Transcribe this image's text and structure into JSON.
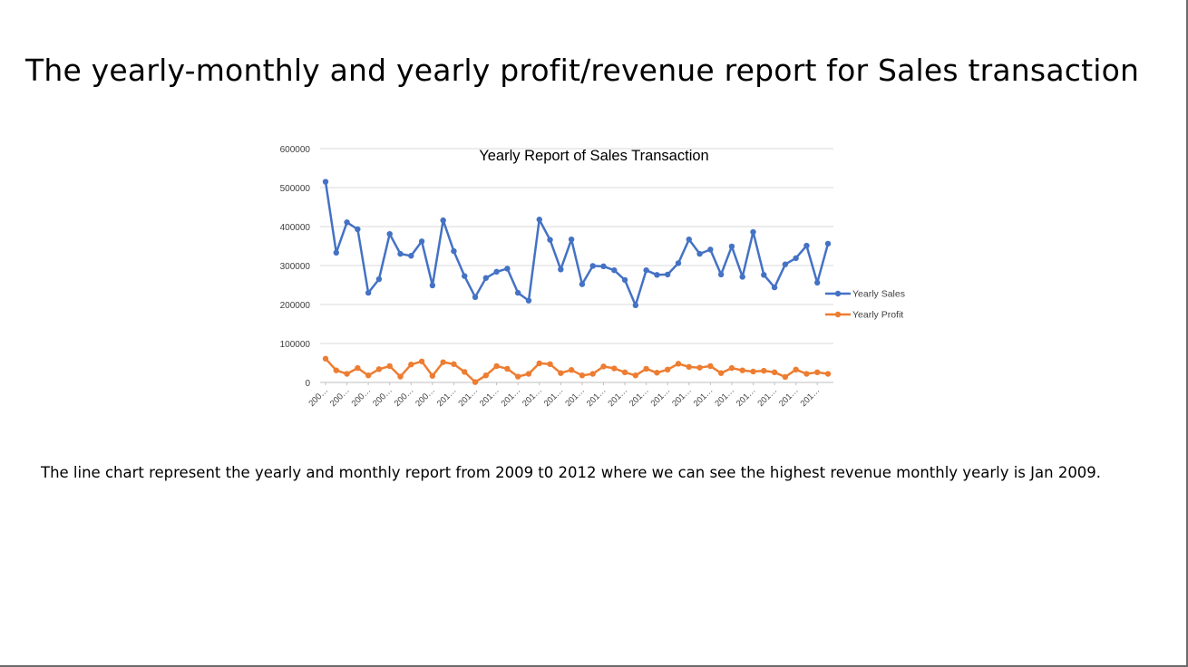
{
  "slide": {
    "title": "The yearly-monthly and yearly profit/revenue report for Sales transaction",
    "description": "The line chart represent the yearly and monthly report from 2009 t0 2012 where we can see the highest revenue monthly yearly is Jan 2009."
  },
  "chart_data": {
    "type": "line",
    "title": "Yearly Report of Sales Transaction",
    "xlabel": "",
    "ylabel": "",
    "ylim": [
      0,
      600000
    ],
    "yticks": [
      0,
      100000,
      200000,
      300000,
      400000,
      500000,
      600000
    ],
    "grid": true,
    "legend_position": "right",
    "x_tick_labels": [
      "200…",
      "200…",
      "200…",
      "200…",
      "200…",
      "200…",
      "201…",
      "201…",
      "201…",
      "201…",
      "201…",
      "201…",
      "201…",
      "201…",
      "201…",
      "201…",
      "201…",
      "201…",
      "201…",
      "201…",
      "201…",
      "201…",
      "201…",
      "201…"
    ],
    "series": [
      {
        "name": "Yearly Sales",
        "color": "#4472C4",
        "values": [
          515000,
          333000,
          411000,
          393000,
          230000,
          265000,
          381000,
          330000,
          325000,
          362000,
          249000,
          416000,
          337000,
          273000,
          219000,
          268000,
          284000,
          292000,
          230000,
          210000,
          418000,
          366000,
          290000,
          367000,
          252000,
          299000,
          298000,
          288000,
          263000,
          198000,
          288000,
          276000,
          277000,
          306000,
          367000,
          330000,
          341000,
          277000,
          349000,
          271000,
          386000,
          276000,
          244000,
          303000,
          319000,
          351000,
          256000,
          356000
        ]
      },
      {
        "name": "Yearly Profit",
        "color": "#ED7D31",
        "values": [
          61000,
          31000,
          22000,
          37000,
          18000,
          34000,
          42000,
          15000,
          46000,
          54000,
          17000,
          52000,
          47000,
          27000,
          1000,
          18000,
          42000,
          35000,
          15000,
          22000,
          49000,
          47000,
          24000,
          32000,
          18000,
          22000,
          41000,
          36000,
          26000,
          18000,
          35000,
          25000,
          33000,
          48000,
          40000,
          38000,
          42000,
          24000,
          37000,
          31000,
          28000,
          30000,
          26000,
          14000,
          33000,
          22000,
          26000,
          22000
        ]
      }
    ]
  }
}
